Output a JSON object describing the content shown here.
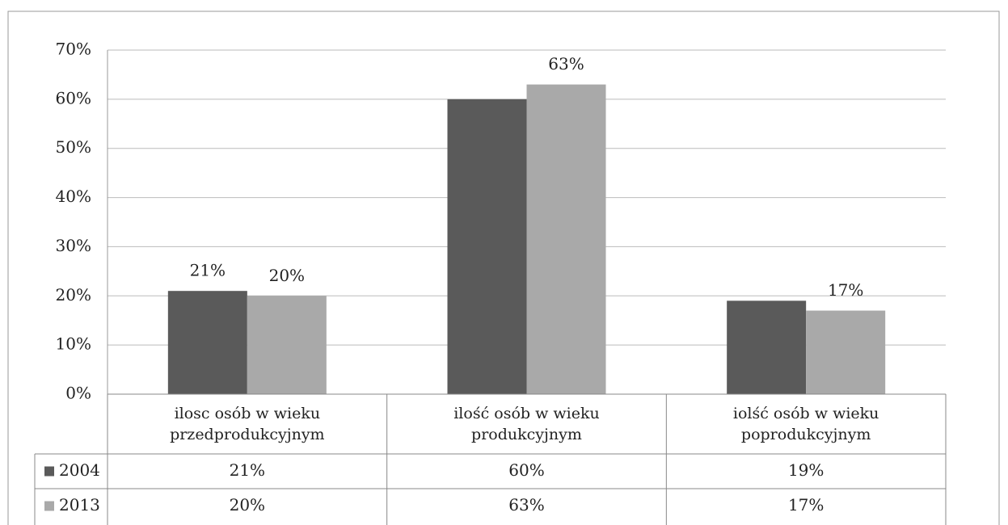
{
  "chart_data": {
    "type": "bar",
    "categories": [
      "ilosc osób w wieku przedprodukcyjnym",
      "ilość osób w wieku produkcyjnym",
      "iolść osób w wieku poprodukcyjnym"
    ],
    "series": [
      {
        "name": "2004",
        "color": "#5a5a5a",
        "values": [
          21,
          60,
          19
        ],
        "value_labels": [
          "21%",
          "60%",
          "19%"
        ],
        "labeled": [
          true,
          false,
          false
        ]
      },
      {
        "name": "2013",
        "color": "#a9a9a9",
        "values": [
          20,
          63,
          17
        ],
        "value_labels": [
          "20%",
          "63%",
          "17%"
        ],
        "labeled": [
          true,
          true,
          true
        ]
      }
    ],
    "ylim": [
      0,
      70
    ],
    "yticks": [
      {
        "value": 0,
        "label": "0%"
      },
      {
        "value": 10,
        "label": "10%"
      },
      {
        "value": 20,
        "label": "20%"
      },
      {
        "value": 30,
        "label": "30%"
      },
      {
        "value": 40,
        "label": "40%"
      },
      {
        "value": 50,
        "label": "50%"
      },
      {
        "value": 60,
        "label": "60%"
      },
      {
        "value": 70,
        "label": "70%"
      }
    ],
    "grid": true,
    "data_table": true
  }
}
